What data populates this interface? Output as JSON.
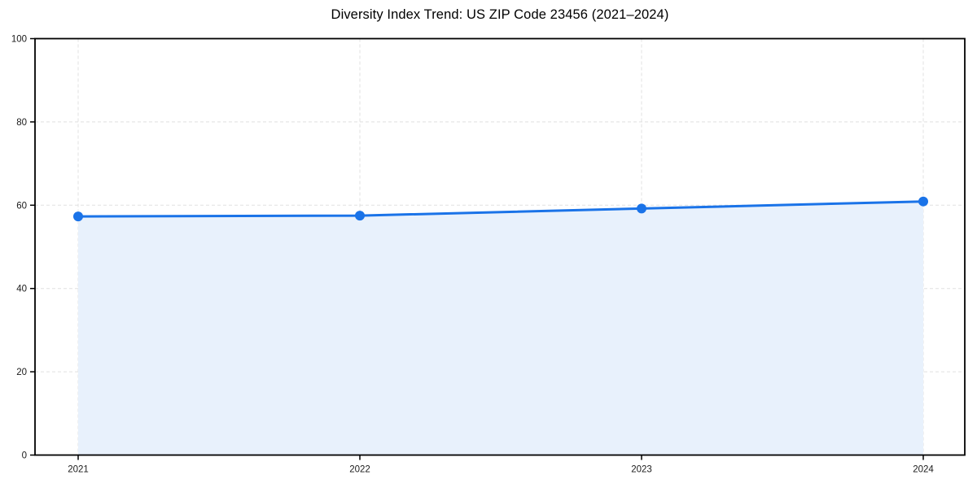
{
  "chart_data": {
    "type": "line",
    "title": "Diversity Index Trend: US ZIP Code 23456 (2021–2024)",
    "categories": [
      "2021",
      "2022",
      "2023",
      "2024"
    ],
    "series": [
      {
        "name": "Diversity Index",
        "values": [
          57.3,
          57.5,
          59.2,
          60.9
        ]
      }
    ],
    "xlabel": "",
    "ylabel": "",
    "ylim": [
      0,
      100
    ],
    "yticks": [
      0,
      20,
      40,
      60,
      80,
      100
    ],
    "grid": true,
    "grid_style": "dashed",
    "legend_position": "none",
    "area_fill": true,
    "markers": true,
    "colors": {
      "line": "#1a73e8",
      "marker": "#1a73e8",
      "area_fill": "#e8f1fc",
      "grid": "#e0e0e0",
      "spine": "#000000",
      "tick_label": "#1a1a1a",
      "title": "#000000",
      "background": "#ffffff"
    }
  }
}
